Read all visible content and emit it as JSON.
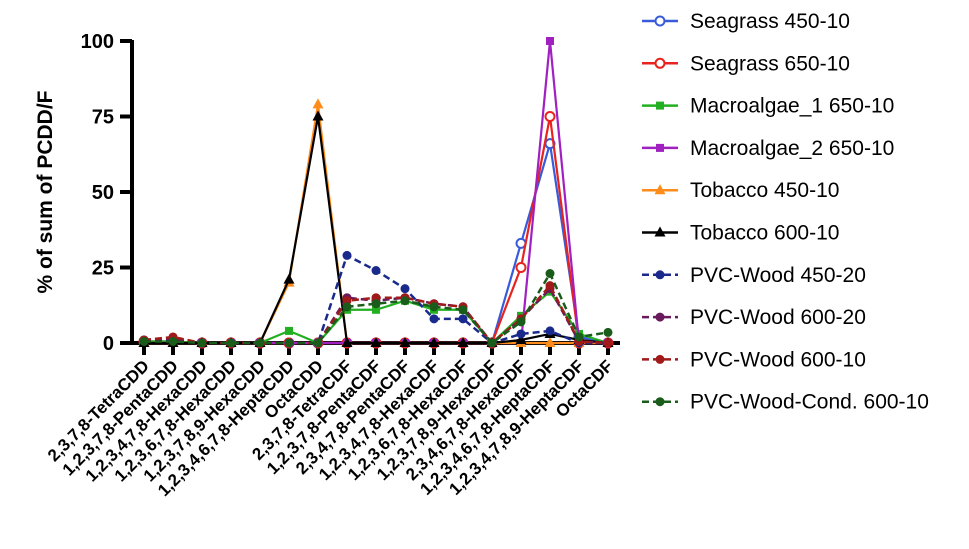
{
  "chart_data": {
    "type": "line",
    "title": "",
    "xlabel": "",
    "ylabel": "% of sum of PCDD/F",
    "ylim": [
      0,
      100
    ],
    "yticks": [
      0,
      25,
      50,
      75,
      100
    ],
    "grid": false,
    "legend_position": "right",
    "categories": [
      "2,3,7,8-TetraCDD",
      "1,2,3,7,8-PentaCDD",
      "1,2,3,4,7,8-HexaCDD",
      "1,2,3,6,7,8-HexaCDD",
      "1,2,3,7,8,9-HexaCDD",
      "1,2,3,4,6,7,8-HeptaCDD",
      "OctaCDD",
      "2,3,7,8-TetraCDF",
      "1,2,3,7,8-PentaCDF",
      "2,3,4,7,8-PentaCDF",
      "1,2,3,4,7,8-HexaCDF",
      "1,2,3,6,7,8-HexaCDF",
      "1,2,3,7,8,9-HexaCDF",
      "2,3,4,6,7,8-HexaCDF",
      "1,2,3,4,6,7,8-HeptaCDF",
      "1,2,3,4,7,8,9-HeptaCDF",
      "OctaCDF"
    ],
    "series": [
      {
        "name": "Seagrass 450-10",
        "color": "#3a5bd9",
        "marker": "circle-open",
        "dashed": false,
        "values": [
          0.5,
          0.5,
          0,
          0,
          0,
          0,
          0,
          0,
          0,
          0,
          0,
          0,
          0,
          33,
          66,
          2,
          0
        ]
      },
      {
        "name": "Seagrass 650-10",
        "color": "#e8231f",
        "marker": "circle-open",
        "dashed": false,
        "values": [
          0.5,
          0.5,
          0,
          0,
          0,
          0,
          0,
          0,
          0,
          0,
          0,
          0,
          0,
          25,
          75,
          0,
          0
        ]
      },
      {
        "name": "Macroalgae_1 650-10",
        "color": "#22b022",
        "marker": "square",
        "dashed": false,
        "values": [
          0.5,
          0.5,
          0,
          0,
          0,
          4,
          0,
          11,
          11,
          14,
          11,
          11,
          0,
          9,
          17,
          3,
          0
        ]
      },
      {
        "name": "Macroalgae_2 650-10",
        "color": "#a020c0",
        "marker": "square",
        "dashed": false,
        "values": [
          0,
          0,
          0,
          0,
          0,
          0,
          0,
          0,
          0,
          0,
          0,
          0,
          0,
          0,
          100,
          0,
          0
        ]
      },
      {
        "name": "Tobacco 450-10",
        "color": "#ff8c1a",
        "marker": "triangle",
        "dashed": false,
        "values": [
          0,
          0,
          0,
          0,
          0,
          20,
          79,
          0,
          0,
          0,
          0,
          0,
          0,
          0,
          0,
          0,
          0
        ]
      },
      {
        "name": "Tobacco 600-10",
        "color": "#000000",
        "marker": "triangle",
        "dashed": false,
        "values": [
          0,
          0,
          0,
          0,
          0,
          21,
          75,
          0,
          0,
          0,
          0,
          0,
          0,
          1,
          3,
          1,
          0
        ]
      },
      {
        "name": "PVC-Wood 450-20",
        "color": "#1a2a8c",
        "marker": "circle",
        "dashed": true,
        "values": [
          1,
          1,
          0,
          0,
          0,
          0,
          0,
          29,
          24,
          18,
          8,
          8,
          0,
          3,
          4,
          0,
          0
        ]
      },
      {
        "name": "PVC-Wood 600-20",
        "color": "#6a1a5c",
        "marker": "circle",
        "dashed": true,
        "values": [
          1,
          1.5,
          0,
          0,
          0,
          0,
          0,
          15,
          14,
          15,
          13,
          12,
          0,
          8,
          18,
          0.5,
          0
        ]
      },
      {
        "name": "PVC-Wood 600-10",
        "color": "#a11a1a",
        "marker": "circle",
        "dashed": true,
        "values": [
          1,
          2,
          0,
          0,
          0,
          0,
          0,
          14,
          15,
          15,
          13,
          12,
          0,
          8,
          19,
          0.5,
          0
        ]
      },
      {
        "name": "PVC-Wood-Cond. 600-10",
        "color": "#1a5c1a",
        "marker": "circle",
        "dashed": true,
        "values": [
          0.5,
          0.5,
          0,
          0,
          0,
          0,
          0,
          12,
          13,
          14,
          12,
          11,
          0,
          7,
          23,
          2,
          3.5
        ]
      }
    ]
  }
}
